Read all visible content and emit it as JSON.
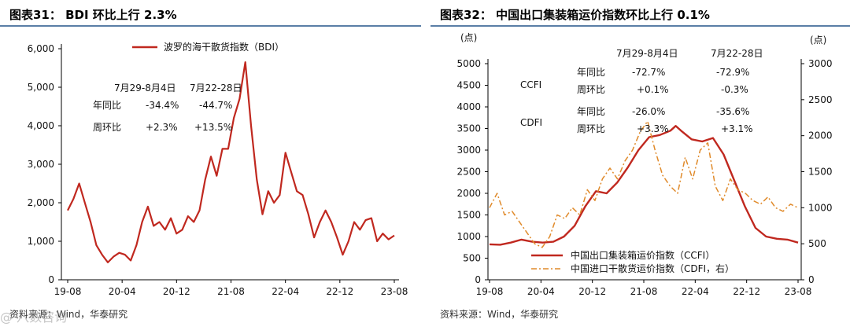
{
  "colors": {
    "accent": "#c0281f",
    "dash": "#e08a2a",
    "rule": "#5a7ea6"
  },
  "left": {
    "title": "图表31：  BDI 环比上行 2.3%",
    "source": "资料来源：Wind，华泰研究",
    "watermark": "@ 八数咨询",
    "legend": "波罗的海干散货指数（BDI）",
    "ann": {
      "header1": "7月29-8月4日",
      "header2": "7月22-28日",
      "row1_label": "年同比",
      "row1_v1": "-34.4%",
      "row1_v2": "-44.7%",
      "row2_label": "周环比",
      "row2_v1": "+2.3%",
      "row2_v2": "+13.5%"
    }
  },
  "right": {
    "title": "图表32：  中国出口集装箱运价指数环比上行 0.1%",
    "source": "资料来源：Wind，华泰研究",
    "unit_left": "(点)",
    "unit_right": "(点)",
    "legend1": "中国出口集装箱运价指数（CCFI）",
    "legend2": "中国进口干散货运价指数（CDFI，右）",
    "ann": {
      "header1": "7月29-8月4日",
      "header2": "7月22-28日",
      "ccfi": "CCFI",
      "cdfi": "CDFI",
      "r1_label": "年同比",
      "r1_v1": "-72.7%",
      "r1_v2": "-72.9%",
      "r2_label": "周环比",
      "r2_v1": "+0.1%",
      "r2_v2": "-0.3%",
      "r3_label": "年同比",
      "r3_v1": "-26.0%",
      "r3_v2": "-35.6%",
      "r4_label": "周环比",
      "r4_v1": "+3.3%",
      "r4_v2": "+3.1%"
    }
  },
  "chart_data": [
    {
      "type": "line",
      "title": "图表31：  BDI 环比上行 2.3%",
      "x_ticks": [
        "19-08",
        "20-04",
        "20-12",
        "21-08",
        "22-04",
        "22-12",
        "23-08"
      ],
      "y_ticks": [
        "0",
        "1,000",
        "2,000",
        "3,000",
        "4,000",
        "5,000",
        "6,000"
      ],
      "ylim": [
        0,
        6000
      ],
      "series": [
        {
          "name": "波罗的海干散货指数（BDI）",
          "color": "#c0281f",
          "points": [
            [
              0,
              1800
            ],
            [
              1,
              2100
            ],
            [
              2,
              2500
            ],
            [
              3,
              2000
            ],
            [
              4,
              1500
            ],
            [
              5,
              900
            ],
            [
              6,
              650
            ],
            [
              7,
              450
            ],
            [
              8,
              600
            ],
            [
              9,
              700
            ],
            [
              10,
              650
            ],
            [
              11,
              500
            ],
            [
              12,
              900
            ],
            [
              13,
              1500
            ],
            [
              14,
              1900
            ],
            [
              15,
              1400
            ],
            [
              16,
              1500
            ],
            [
              17,
              1300
            ],
            [
              18,
              1600
            ],
            [
              19,
              1200
            ],
            [
              20,
              1300
            ],
            [
              21,
              1650
            ],
            [
              22,
              1500
            ],
            [
              23,
              1800
            ],
            [
              24,
              2600
            ],
            [
              25,
              3200
            ],
            [
              26,
              2700
            ],
            [
              27,
              3400
            ],
            [
              28,
              3400
            ],
            [
              29,
              4200
            ],
            [
              30,
              4700
            ],
            [
              31,
              5650
            ],
            [
              32,
              4000
            ],
            [
              33,
              2600
            ],
            [
              34,
              1700
            ],
            [
              35,
              2300
            ],
            [
              36,
              2000
            ],
            [
              37,
              2200
            ],
            [
              38,
              3300
            ],
            [
              39,
              2800
            ],
            [
              40,
              2300
            ],
            [
              41,
              2200
            ],
            [
              42,
              1700
            ],
            [
              43,
              1100
            ],
            [
              44,
              1500
            ],
            [
              45,
              1800
            ],
            [
              46,
              1500
            ],
            [
              47,
              1100
            ],
            [
              48,
              650
            ],
            [
              49,
              1000
            ],
            [
              50,
              1500
            ],
            [
              51,
              1300
            ],
            [
              52,
              1550
            ],
            [
              53,
              1600
            ],
            [
              54,
              1000
            ],
            [
              55,
              1200
            ],
            [
              56,
              1050
            ],
            [
              57,
              1150
            ]
          ]
        }
      ]
    },
    {
      "type": "line",
      "title": "图表32：  中国出口集装箱运价指数环比上行 0.1%",
      "x_ticks": [
        "19-08",
        "20-04",
        "20-12",
        "21-08",
        "22-04",
        "22-12",
        "23-08"
      ],
      "y_ticks_left": [
        "0",
        "500",
        "1000",
        "1500",
        "2000",
        "2500",
        "3000",
        "3500",
        "4000",
        "4500",
        "5000"
      ],
      "y_ticks_right": [
        "0",
        "500",
        "1000",
        "1500",
        "2000",
        "2500",
        "3000"
      ],
      "ylim_left": [
        0,
        5000
      ],
      "ylim_right": [
        0,
        3000
      ],
      "series": [
        {
          "name": "中国出口集装箱运价指数（CCFI）",
          "axis": "left",
          "color": "#c0281f",
          "points": [
            [
              0,
              820
            ],
            [
              2,
              810
            ],
            [
              4,
              860
            ],
            [
              6,
              930
            ],
            [
              8,
              880
            ],
            [
              10,
              860
            ],
            [
              12,
              880
            ],
            [
              14,
              1000
            ],
            [
              16,
              1250
            ],
            [
              18,
              1700
            ],
            [
              20,
              2050
            ],
            [
              22,
              2000
            ],
            [
              24,
              2250
            ],
            [
              26,
              2600
            ],
            [
              28,
              3000
            ],
            [
              30,
              3300
            ],
            [
              32,
              3350
            ],
            [
              34,
              3450
            ],
            [
              35,
              3560
            ],
            [
              36,
              3450
            ],
            [
              38,
              3250
            ],
            [
              40,
              3200
            ],
            [
              42,
              3280
            ],
            [
              44,
              2900
            ],
            [
              46,
              2300
            ],
            [
              48,
              1700
            ],
            [
              50,
              1200
            ],
            [
              52,
              1000
            ],
            [
              54,
              950
            ],
            [
              56,
              930
            ],
            [
              58,
              860
            ]
          ]
        },
        {
          "name": "中国进口干散货运价指数（CDFI，右）",
          "axis": "right",
          "color": "#e08a2a",
          "points": [
            [
              0,
              1000
            ],
            [
              1,
              1200
            ],
            [
              2,
              900
            ],
            [
              3,
              950
            ],
            [
              4,
              800
            ],
            [
              5,
              650
            ],
            [
              6,
              500
            ],
            [
              7,
              450
            ],
            [
              8,
              600
            ],
            [
              9,
              900
            ],
            [
              10,
              850
            ],
            [
              11,
              1000
            ],
            [
              12,
              900
            ],
            [
              13,
              1250
            ],
            [
              14,
              1100
            ],
            [
              15,
              1400
            ],
            [
              16,
              1550
            ],
            [
              17,
              1400
            ],
            [
              18,
              1650
            ],
            [
              19,
              1800
            ],
            [
              20,
              2050
            ],
            [
              21,
              2200
            ],
            [
              22,
              1800
            ],
            [
              23,
              1450
            ],
            [
              24,
              1300
            ],
            [
              25,
              1200
            ],
            [
              26,
              1700
            ],
            [
              27,
              1400
            ],
            [
              28,
              1800
            ],
            [
              29,
              1900
            ],
            [
              30,
              1300
            ],
            [
              31,
              1100
            ],
            [
              32,
              1400
            ],
            [
              33,
              1250
            ],
            [
              34,
              1200
            ],
            [
              35,
              1100
            ],
            [
              36,
              1050
            ],
            [
              37,
              1150
            ],
            [
              38,
              1000
            ],
            [
              39,
              950
            ],
            [
              40,
              1050
            ],
            [
              41,
              1000
            ]
          ]
        }
      ]
    }
  ]
}
